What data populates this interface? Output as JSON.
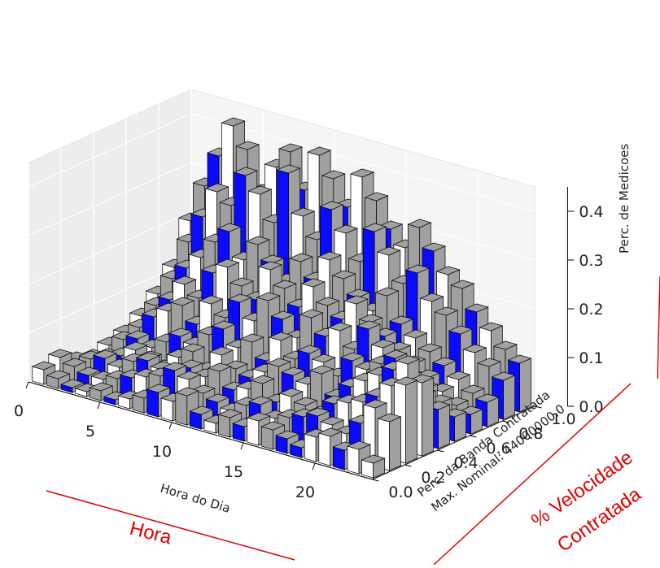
{
  "chart_data": {
    "type": "bar3d",
    "title": "",
    "xlabel": "Hora do Dia",
    "ylabel_lines": [
      "Perc. da Banda Contratada",
      "Max. Nominal: 44000000.0"
    ],
    "zlabel": "Perc. de Medicoes",
    "x_ticks": [
      "0",
      "5",
      "10",
      "15",
      "20"
    ],
    "y_ticks": [
      "0.0",
      "0.2",
      "0.4",
      "0.6",
      "0.8",
      "1.0"
    ],
    "z_ticks": [
      "0.0",
      "0.1",
      "0.2",
      "0.3",
      "0.4"
    ],
    "xlim": [
      0,
      24
    ],
    "ylim": [
      0.0,
      1.0
    ],
    "zlim": [
      0.0,
      0.45
    ],
    "grid": true,
    "colors": {
      "blue": "#0a0aff",
      "gray": "#a0a0a0",
      "white": "#ffffff",
      "edge": "#000000"
    },
    "y_bins": [
      0.0,
      0.1,
      0.2,
      0.3,
      0.4,
      0.5,
      0.6,
      0.7,
      0.8,
      0.9
    ],
    "hours": [
      0,
      1,
      2,
      3,
      4,
      5,
      6,
      7,
      8,
      9,
      10,
      11,
      12,
      13,
      14,
      15,
      16,
      17,
      18,
      19,
      20,
      21,
      22,
      23
    ],
    "values": [
      [
        0.03,
        0.02,
        0.01,
        0.01,
        0.02,
        0.01,
        0.02,
        0.03,
        0.05,
        0.04,
        0.06,
        0.03,
        0.02,
        0.04,
        0.03,
        0.05,
        0.04,
        0.03,
        0.02,
        0.05,
        0.06,
        0.04,
        0.05,
        0.03
      ],
      [
        0.04,
        0.03,
        0.02,
        0.02,
        0.03,
        0.04,
        0.05,
        0.06,
        0.08,
        0.07,
        0.05,
        0.04,
        0.03,
        0.05,
        0.06,
        0.04,
        0.05,
        0.06,
        0.07,
        0.06,
        0.05,
        0.08,
        0.12,
        0.1
      ],
      [
        0.02,
        0.03,
        0.04,
        0.03,
        0.05,
        0.06,
        0.05,
        0.04,
        0.07,
        0.06,
        0.08,
        0.05,
        0.06,
        0.08,
        0.05,
        0.07,
        0.06,
        0.05,
        0.08,
        0.09,
        0.1,
        0.12,
        0.15,
        0.16
      ],
      [
        0.01,
        0.02,
        0.03,
        0.05,
        0.04,
        0.03,
        0.06,
        0.08,
        0.05,
        0.09,
        0.07,
        0.06,
        0.08,
        0.1,
        0.09,
        0.08,
        0.11,
        0.07,
        0.1,
        0.12,
        0.14,
        0.16,
        0.18,
        0.15
      ],
      [
        0.02,
        0.04,
        0.05,
        0.04,
        0.06,
        0.08,
        0.07,
        0.1,
        0.12,
        0.09,
        0.11,
        0.08,
        0.13,
        0.1,
        0.12,
        0.11,
        0.09,
        0.13,
        0.12,
        0.14,
        0.16,
        0.13,
        0.1,
        0.08
      ],
      [
        0.03,
        0.05,
        0.08,
        0.1,
        0.12,
        0.09,
        0.14,
        0.12,
        0.16,
        0.13,
        0.18,
        0.15,
        0.12,
        0.17,
        0.14,
        0.16,
        0.13,
        0.18,
        0.15,
        0.12,
        0.1,
        0.09,
        0.07,
        0.05
      ],
      [
        0.05,
        0.08,
        0.1,
        0.14,
        0.12,
        0.18,
        0.2,
        0.17,
        0.15,
        0.22,
        0.19,
        0.16,
        0.21,
        0.18,
        0.16,
        0.2,
        0.17,
        0.15,
        0.13,
        0.11,
        0.09,
        0.07,
        0.05,
        0.04
      ],
      [
        0.08,
        0.12,
        0.15,
        0.18,
        0.22,
        0.25,
        0.2,
        0.24,
        0.21,
        0.18,
        0.23,
        0.2,
        0.25,
        0.22,
        0.19,
        0.17,
        0.21,
        0.16,
        0.14,
        0.12,
        0.1,
        0.08,
        0.06,
        0.05
      ],
      [
        0.12,
        0.18,
        0.24,
        0.3,
        0.28,
        0.35,
        0.32,
        0.27,
        0.38,
        0.3,
        0.26,
        0.33,
        0.29,
        0.24,
        0.31,
        0.27,
        0.22,
        0.25,
        0.2,
        0.18,
        0.15,
        0.12,
        0.1,
        0.08
      ],
      [
        0.2,
        0.28,
        0.35,
        0.42,
        0.38,
        0.3,
        0.36,
        0.4,
        0.33,
        0.41,
        0.37,
        0.32,
        0.39,
        0.35,
        0.3,
        0.27,
        0.32,
        0.28,
        0.24,
        0.22,
        0.18,
        0.15,
        0.12,
        0.1
      ]
    ]
  },
  "annotations": {
    "hora": "Hora",
    "velocidade_line1": "% Velocidade",
    "velocidade_line2": "Contratada"
  }
}
